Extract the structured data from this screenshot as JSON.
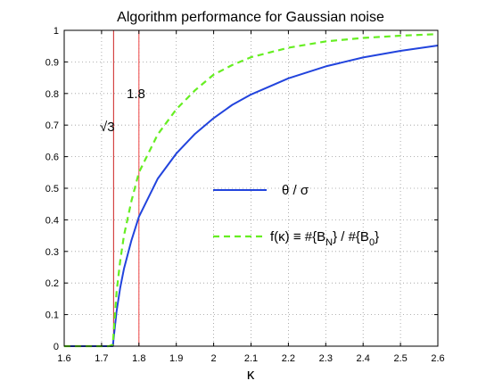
{
  "chart_data": {
    "type": "line",
    "title": "Algorithm performance for Gaussian noise",
    "xlabel": "κ",
    "ylabel": "",
    "xlim": [
      1.6,
      2.6
    ],
    "ylim": [
      0,
      1
    ],
    "xticks": [
      "1.6",
      "1.7",
      "1.8",
      "1.9",
      "2",
      "2.1",
      "2.2",
      "2.3",
      "2.4",
      "2.5",
      "2.6"
    ],
    "yticks": [
      "0",
      "0.1",
      "0.2",
      "0.3",
      "0.4",
      "0.5",
      "0.6",
      "0.7",
      "0.8",
      "0.9",
      "1"
    ],
    "grid": true,
    "legend_position": "center-right",
    "vlines": [
      {
        "x": 1.7321,
        "label": "√3",
        "color": "#cc2222"
      },
      {
        "x": 1.8,
        "label": "1.8",
        "color": "#ee4444"
      }
    ],
    "series": [
      {
        "name": "θ / σ",
        "style": "solid",
        "color": "#2244dd",
        "x": [
          1.6,
          1.7,
          1.73,
          1.74,
          1.75,
          1.76,
          1.78,
          1.8,
          1.85,
          1.9,
          1.95,
          2.0,
          2.05,
          2.1,
          2.2,
          2.3,
          2.4,
          2.5,
          2.6
        ],
        "y": [
          0,
          0,
          0,
          0.11,
          0.185,
          0.245,
          0.335,
          0.41,
          0.53,
          0.61,
          0.672,
          0.722,
          0.764,
          0.797,
          0.848,
          0.886,
          0.914,
          0.935,
          0.952
        ]
      },
      {
        "name": "f(κ) ≡ #{B_N} / #{B_0}",
        "style": "dashed",
        "color": "#66ee22",
        "x": [
          1.6,
          1.7,
          1.72,
          1.73,
          1.74,
          1.75,
          1.76,
          1.78,
          1.8,
          1.85,
          1.9,
          1.95,
          2.0,
          2.05,
          2.1,
          2.2,
          2.3,
          2.4,
          2.5,
          2.6
        ],
        "y": [
          0,
          0,
          0,
          0.005,
          0.17,
          0.27,
          0.35,
          0.46,
          0.55,
          0.67,
          0.75,
          0.81,
          0.86,
          0.89,
          0.915,
          0.945,
          0.965,
          0.976,
          0.983,
          0.988
        ]
      }
    ]
  }
}
